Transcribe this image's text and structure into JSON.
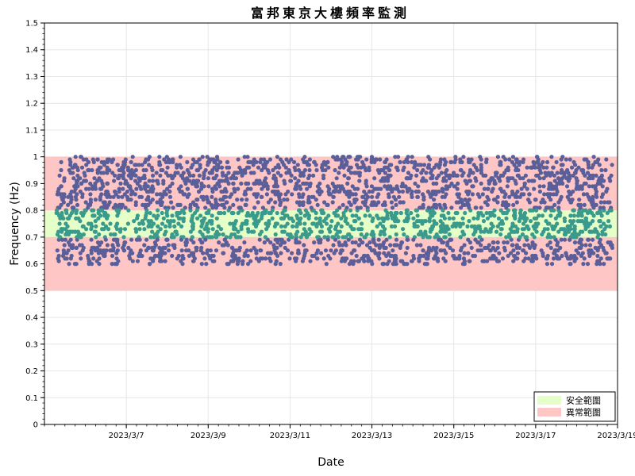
{
  "chart_data": {
    "type": "scatter",
    "title": "富邦東京大樓頻率監測",
    "xlabel": "Date",
    "ylabel": "Frequency (Hz)",
    "ylim": [
      0,
      1.5
    ],
    "y_ticks": [
      "0",
      "0.1",
      "0.2",
      "0.3",
      "0.4",
      "0.5",
      "0.6",
      "0.7",
      "0.8",
      "0.9",
      "1",
      "1.1",
      "1.2",
      "1.3",
      "1.4",
      "1.5"
    ],
    "xlim": [
      "2023-03-05T00:00",
      "2023-03-19T00:00"
    ],
    "x_ticks": [
      "2023/3/7",
      "2023/3/9",
      "2023/3/11",
      "2023/3/13",
      "2023/3/15",
      "2023/3/17",
      "2023/3/19"
    ],
    "x_tick_dates": [
      "2023-03-07",
      "2023-03-09",
      "2023-03-11",
      "2023-03-13",
      "2023-03-15",
      "2023-03-17",
      "2023-03-19"
    ],
    "grid": true,
    "legend_position": "bottom-right",
    "bands": [
      {
        "name": "安全範圍",
        "y_range": [
          0.7,
          0.8
        ],
        "color": "#e6ffc8"
      },
      {
        "name": "異常範圍",
        "y_range": [
          0.5,
          0.7
        ],
        "color": "#ffc6c6"
      },
      {
        "name": "異常範圍",
        "y_range": [
          0.8,
          1.0
        ],
        "color": "#ffc6c6"
      }
    ],
    "legend": [
      {
        "label": "安全範圍",
        "color": "#e6ffc8"
      },
      {
        "label": "異常範圍",
        "color": "#ffc6c6"
      }
    ],
    "series": [
      {
        "data_range": {
          "x": [
            "2023-03-05T07:00",
            "2023-03-18T21:00"
          ],
          "y": [
            0.6,
            1.0
          ]
        },
        "marker_color_in_safe": "#3a9a8c",
        "marker_color_outside": "#5a5e99",
        "approx_points": 3000
      }
    ]
  }
}
